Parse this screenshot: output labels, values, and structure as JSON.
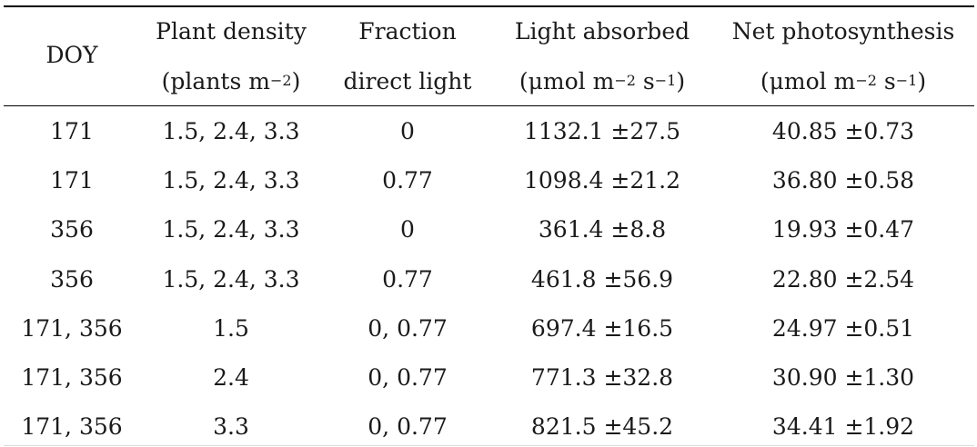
{
  "table": {
    "headers": {
      "doy": "DOY",
      "density_line1": "Plant density",
      "density_line2": "(plants m",
      "density_exp": "−2",
      "density_close": ")",
      "fraction_line1": "Fraction",
      "fraction_line2": "direct light",
      "light_line1": "Light absorbed",
      "light_line2a": "(μmol m",
      "light_exp1": "−2",
      "light_line2b": " s",
      "light_exp2": "−1",
      "light_close": ")",
      "photo_line1": "Net photosynthesis",
      "photo_line2a": "(μmol m",
      "photo_exp1": "−2",
      "photo_line2b": " s",
      "photo_exp2": "−1",
      "photo_close": ")"
    },
    "rows": [
      {
        "doy": "171",
        "density": "1.5, 2.4, 3.3",
        "fraction": "0",
        "light": "1132.1 ±27.5",
        "photo": "40.85 ±0.73"
      },
      {
        "doy": "171",
        "density": "1.5, 2.4, 3.3",
        "fraction": "0.77",
        "light": "1098.4 ±21.2",
        "photo": "36.80 ±0.58"
      },
      {
        "doy": "356",
        "density": "1.5, 2.4, 3.3",
        "fraction": "0",
        "light": "361.4 ±8.8",
        "photo": "19.93 ±0.47"
      },
      {
        "doy": "356",
        "density": "1.5, 2.4, 3.3",
        "fraction": "0.77",
        "light": "461.8 ±56.9",
        "photo": "22.80 ±2.54"
      },
      {
        "doy": "171, 356",
        "density": "1.5",
        "fraction": "0, 0.77",
        "light": "697.4 ±16.5",
        "photo": "24.97 ±0.51"
      },
      {
        "doy": "171, 356",
        "density": "2.4",
        "fraction": "0, 0.77",
        "light": "771.3 ±32.8",
        "photo": "30.90 ±1.30"
      },
      {
        "doy": "171, 356",
        "density": "3.3",
        "fraction": "0, 0.77",
        "light": "821.5 ±45.2",
        "photo": "34.41 ±1.92"
      }
    ]
  }
}
